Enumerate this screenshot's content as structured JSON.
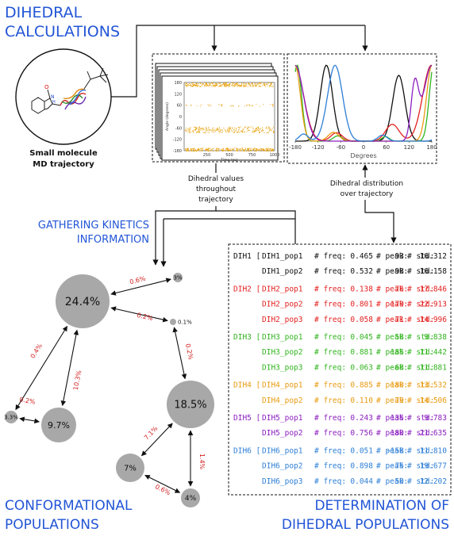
{
  "headings": {
    "dihedral_calc_1": "DIHEDRAL",
    "dihedral_calc_2": "CALCULATIONS",
    "kinetics_1": "GATHERING KINETICS",
    "kinetics_2": "INFORMATION",
    "conf_1": "CONFORMATIONAL",
    "conf_2": "POPULATIONS",
    "determ_1": "DETERMINATION OF",
    "determ_2": "DIHEDRAL POPULATIONS"
  },
  "molecule": {
    "caption_1": "Small molecule",
    "caption_2": "MD trajectory",
    "atom_o": "O",
    "atom_n": "N",
    "atom_h": "H"
  },
  "labels": {
    "values_1": "Dihedral values",
    "values_2": "throughout",
    "values_3": "trajectory",
    "dist_1": "Dihedral distribution",
    "dist_2": "over trajectory"
  },
  "timeseries_plot": {
    "ylabel": "Angle (degrees)",
    "xlabel": "Time (ns)",
    "yticks": [
      "180",
      "120",
      "60",
      "0",
      "-60",
      "-120",
      "-180"
    ],
    "xticks": [
      "250",
      "500",
      "750",
      "1000"
    ],
    "color": "#e8a20c"
  },
  "distribution_plot": {
    "xlabel": "Degrees",
    "xticks": [
      "-180",
      "-120",
      "-60",
      "0",
      "60",
      "120",
      "180"
    ]
  },
  "network": {
    "nodes": [
      {
        "id": "n1",
        "label": "24.4%"
      },
      {
        "id": "n2",
        "label": "18.5%"
      },
      {
        "id": "n3",
        "label": "9.7%"
      },
      {
        "id": "n4",
        "label": "7%"
      },
      {
        "id": "n5",
        "label": "4%"
      },
      {
        "id": "n6",
        "label": "3.3%"
      },
      {
        "id": "n7",
        "label": "3%"
      },
      {
        "id": "n8",
        "label": "0.1%"
      }
    ],
    "edges": [
      {
        "from": "n1",
        "to": "n7",
        "rate": "0.6%"
      },
      {
        "from": "n1",
        "to": "n8",
        "rate": "0.2%"
      },
      {
        "from": "n1",
        "to": "n6",
        "rate": "0.4%"
      },
      {
        "from": "n1",
        "to": "n3",
        "rate": "10.3%"
      },
      {
        "from": "n6",
        "to": "n3",
        "rate": "0.2%"
      },
      {
        "from": "n8",
        "to": "n2",
        "rate": "0.2%"
      },
      {
        "from": "n2",
        "to": "n4",
        "rate": "7.1%"
      },
      {
        "from": "n2",
        "to": "n5",
        "rate": "1.4%"
      },
      {
        "from": "n4",
        "to": "n5",
        "rate": "0.6%"
      }
    ]
  },
  "table": {
    "freq_key": "# freq:",
    "peak_key": "# peak:",
    "std_key": "# std:",
    "rows": [
      {
        "group": "DIH1 [",
        "pop": "DIH1_pop1",
        "freq": "0.465",
        "peak": "93",
        "std": "16.312",
        "color": "#111111"
      },
      {
        "group": "",
        "pop": "DIH1_pop2",
        "freq": "0.532",
        "peak": "-98",
        "std": "16.158",
        "color": "#111111"
      },
      {
        "group": "DIH2 [",
        "pop": "DIH2_pop1",
        "freq": "0.138",
        "peak": "76",
        "std": "17.846",
        "color": "#e32020"
      },
      {
        "group": "",
        "pop": "DIH2_pop2",
        "freq": "0.801",
        "peak": "179",
        "std": "22.913",
        "color": "#e32020"
      },
      {
        "group": "",
        "pop": "DIH2_pop3",
        "freq": "0.058",
        "peak": "-71",
        "std": "14.996",
        "color": "#e32020"
      },
      {
        "group": "DIH3 [",
        "pop": "DIH3_pop1",
        "freq": "0.045",
        "peak": "58",
        "std": "9.838",
        "color": "#32b51f"
      },
      {
        "group": "",
        "pop": "DIH3_pop2",
        "freq": "0.881",
        "peak": "185",
        "std": "11.442",
        "color": "#32b51f"
      },
      {
        "group": "",
        "pop": "DIH3_pop3",
        "freq": "0.063",
        "peak": "-68",
        "std": "11.881",
        "color": "#32b51f"
      },
      {
        "group": "DIH4 [",
        "pop": "DIH4_pop1",
        "freq": "0.885",
        "peak": "180",
        "std": "13.532",
        "color": "#e89b12"
      },
      {
        "group": "",
        "pop": "DIH4_pop2",
        "freq": "0.110",
        "peak": "-79",
        "std": "14.506",
        "color": "#e89b12"
      },
      {
        "group": "DIH5 [",
        "pop": "DIH5_pop1",
        "freq": "0.243",
        "peak": "135",
        "std": "9.783",
        "color": "#8b1fbf"
      },
      {
        "group": "",
        "pop": "DIH5_pop2",
        "freq": "0.756",
        "peak": "180",
        "std": "21.635",
        "color": "#8b1fbf"
      },
      {
        "group": "DIH6 [",
        "pop": "DIH6_pop1",
        "freq": "0.051",
        "peak": "-158",
        "std": "11.810",
        "color": "#2e7fd6"
      },
      {
        "group": "",
        "pop": "DIH6_pop2",
        "freq": "0.898",
        "peak": "-75",
        "std": "19.677",
        "color": "#2e7fd6"
      },
      {
        "group": "",
        "pop": "DIH6_pop3",
        "freq": "0.044",
        "peak": "50",
        "std": "12.202",
        "color": "#2e7fd6"
      }
    ]
  }
}
